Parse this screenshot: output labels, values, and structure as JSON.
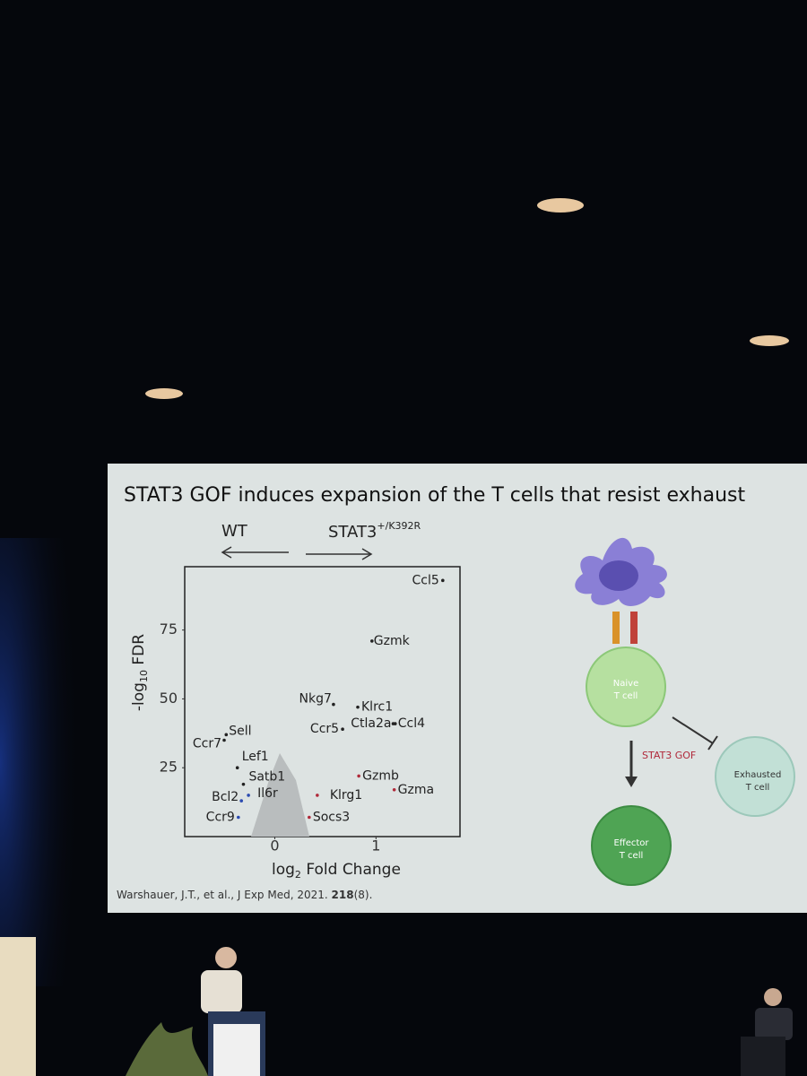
{
  "slide": {
    "title": "STAT3 GOF induces expansion of the T cells that resist exhaust",
    "plot": {
      "left_label": "WT",
      "right_label": {
        "base": "STAT3",
        "sup": "+/K392R"
      },
      "y_label": {
        "base": "-log",
        "sub": "10",
        "rest": " FDR"
      },
      "x_label": {
        "base": "log",
        "sub": "2",
        "rest": " Fold Change"
      },
      "xlim": [
        -0.89,
        1.83
      ],
      "ylim": [
        0,
        98
      ],
      "xticks": [
        0,
        1
      ],
      "yticks": [
        25,
        50,
        75
      ],
      "genes": [
        {
          "name": "Ccl5",
          "x": 1.66,
          "y": 93
        },
        {
          "name": "Gzmk",
          "x": 0.96,
          "y": 71
        },
        {
          "name": "Nkg7",
          "x": 0.58,
          "y": 48
        },
        {
          "name": "Klrc1",
          "x": 0.82,
          "y": 47
        },
        {
          "name": "Ctla2a",
          "x": 1.17,
          "y": 41
        },
        {
          "name": "Ccl4",
          "x": 1.19,
          "y": 41
        },
        {
          "name": "Ccr5",
          "x": 0.67,
          "y": 39
        },
        {
          "name": "Gzmb",
          "x": 0.83,
          "y": 22
        },
        {
          "name": "Gzma",
          "x": 1.18,
          "y": 17
        },
        {
          "name": "Klrg1",
          "x": 0.42,
          "y": 15
        },
        {
          "name": "Socs3",
          "x": 0.34,
          "y": 7
        },
        {
          "name": "Sell",
          "x": -0.48,
          "y": 37
        },
        {
          "name": "Ccr7",
          "x": -0.5,
          "y": 35
        },
        {
          "name": "Lef1",
          "x": -0.37,
          "y": 25
        },
        {
          "name": "Satb1",
          "x": -0.31,
          "y": 19
        },
        {
          "name": "Il6r",
          "x": -0.26,
          "y": 15
        },
        {
          "name": "Bcl2",
          "x": -0.33,
          "y": 13
        },
        {
          "name": "Ccr9",
          "x": -0.36,
          "y": 7
        }
      ]
    },
    "diagram": {
      "naive": [
        "Naive",
        "T cell"
      ],
      "arrow_label": "STAT3 GOF",
      "exhausted": [
        "Exhausted",
        "T cell"
      ],
      "effector": [
        "Effector",
        "T cell"
      ]
    },
    "citation": {
      "text": "Warshauer, J.T., et al., J Exp Med, 2021. ",
      "volume": "218",
      "issue": "(8)."
    }
  }
}
